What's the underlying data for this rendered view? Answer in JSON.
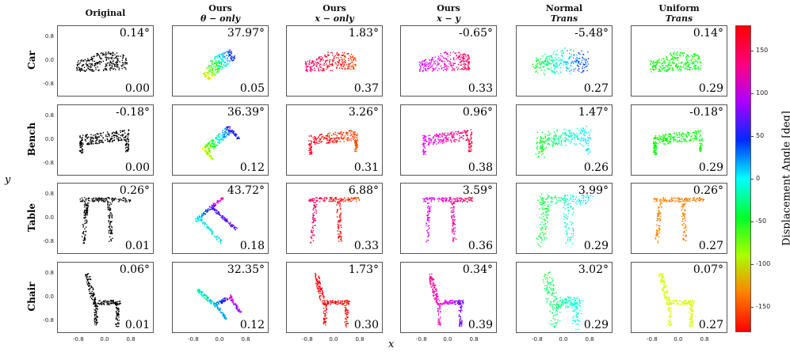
{
  "chart_data": {
    "type": "scatter",
    "xlabel": "x",
    "ylabel": "y",
    "xlim": [
      -1.45,
      1.5
    ],
    "ylim": [
      -1.2,
      1.2
    ],
    "xticks": [
      "-0.8",
      "0.0",
      "0.8"
    ],
    "yticks": [
      "0.8",
      "0.0",
      "-0.8"
    ],
    "columns": [
      {
        "title": "Original",
        "subtitle": ""
      },
      {
        "title": "Ours",
        "subtitle": "θ − only"
      },
      {
        "title": "Ours",
        "subtitle": "x − only"
      },
      {
        "title": "Ours",
        "subtitle": "x − y"
      },
      {
        "title": "Normal",
        "subtitle": "Trans"
      },
      {
        "title": "Uniform",
        "subtitle": "Trans"
      }
    ],
    "rows": [
      {
        "label": "Car",
        "angles": [
          "0.14°",
          "37.97°",
          "1.83°",
          "-0.65°",
          "-5.48°",
          "0.14°"
        ],
        "scores": [
          "0.00",
          "0.05",
          "0.37",
          "0.33",
          "0.27",
          "0.29"
        ]
      },
      {
        "label": "Bench",
        "angles": [
          "-0.18°",
          "36.39°",
          "3.26°",
          "0.96°",
          "1.47°",
          "-0.18°"
        ],
        "scores": [
          "0.00",
          "0.12",
          "0.31",
          "0.38",
          "0.26",
          "0.29"
        ]
      },
      {
        "label": "Table",
        "angles": [
          "0.26°",
          "43.72°",
          "6.88°",
          "3.59°",
          "3.99°",
          "0.26°"
        ],
        "scores": [
          "0.01",
          "0.18",
          "0.33",
          "0.36",
          "0.29",
          "0.27"
        ]
      },
      {
        "label": "Chair",
        "angles": [
          "0.06°",
          "32.35°",
          "1.73°",
          "0.34°",
          "3.02°",
          "0.07°"
        ],
        "scores": [
          "0.01",
          "0.12",
          "0.30",
          "0.39",
          "0.29",
          "0.27"
        ]
      }
    ],
    "point_displacement_angle_ranges": [
      [
        null,
        [
          -130,
          80
        ],
        [
          150,
          -160
        ],
        [
          100,
          170
        ],
        [
          -60,
          60
        ],
        [
          -60,
          -60
        ]
      ],
      [
        null,
        [
          -120,
          80
        ],
        [
          170,
          -160
        ],
        [
          110,
          170
        ],
        [
          -60,
          10
        ],
        [
          -60,
          -60
        ]
      ],
      [
        null,
        [
          -30,
          150
        ],
        [
          150,
          -160
        ],
        [
          100,
          170
        ],
        [
          -60,
          20
        ],
        [
          -150,
          -150
        ]
      ],
      [
        null,
        [
          -60,
          160
        ],
        [
          175,
          -175
        ],
        [
          170,
          60
        ],
        [
          -60,
          10
        ],
        [
          -110,
          -110
        ]
      ]
    ],
    "colorbar": {
      "label": "Displacement Angle [deg]",
      "ticks": [
        "150",
        "100",
        "50",
        "0",
        "-50",
        "-100",
        "-150"
      ],
      "range": [
        -180,
        180
      ]
    },
    "colors": {
      "original_points": "#000000",
      "frame": "#555555"
    }
  }
}
